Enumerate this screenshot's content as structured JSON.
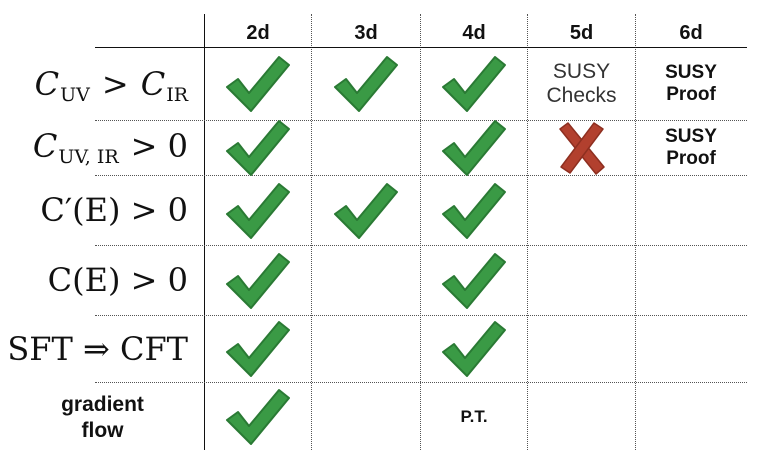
{
  "columns": [
    "2d",
    "3d",
    "4d",
    "5d",
    "6d"
  ],
  "rows": [
    {
      "label_parts": [
        "C",
        "UV",
        ">",
        "C",
        "IR"
      ],
      "cells": [
        "check",
        "check",
        "check",
        {
          "text": [
            "SUSY",
            "Checks"
          ],
          "style": "light"
        },
        {
          "text": [
            "SUSY",
            "Proof"
          ],
          "style": "bold"
        }
      ]
    },
    {
      "label_parts": [
        "C",
        "UV, IR",
        "> 0"
      ],
      "cells": [
        "check",
        "",
        "check",
        "cross",
        {
          "text": [
            "SUSY",
            "Proof"
          ],
          "style": "bold"
        }
      ]
    },
    {
      "label": "C′(E) > 0",
      "cells": [
        "check",
        "check",
        "check",
        "",
        ""
      ]
    },
    {
      "label": "C(E) > 0",
      "cells": [
        "check",
        "",
        "check",
        "",
        ""
      ]
    },
    {
      "label": "SFT ⇒ CFT",
      "cells": [
        "check",
        "",
        "check",
        "",
        ""
      ]
    },
    {
      "label_lines": [
        "gradient",
        "flow"
      ],
      "cells": [
        "check",
        "",
        {
          "text": [
            "P.T."
          ],
          "style": "pt"
        },
        "",
        ""
      ]
    }
  ],
  "colors": {
    "check": "#3a9a45",
    "check_edge": "#2a7a34",
    "cross": "#b2402e",
    "cross_edge": "#8e2f20"
  }
}
